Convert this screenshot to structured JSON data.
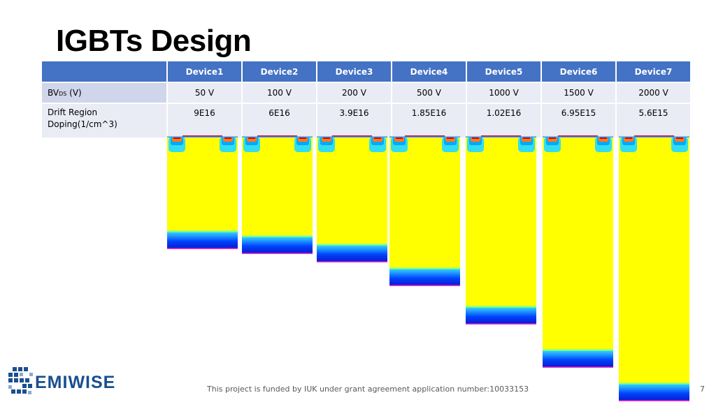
{
  "title": "IGBTs Design",
  "table": {
    "devices": [
      "Device1",
      "Device2",
      "Device3",
      "Device4",
      "Device5",
      "Device6",
      "Device7"
    ],
    "bvds_label_prefix": "BV",
    "bvds_label_sub": "DS",
    "bvds_label_suffix": " (V)",
    "bvds": [
      "50 V",
      "100 V",
      "200 V",
      "500 V",
      "1000 V",
      "1500 V",
      "2000 V"
    ],
    "doping_label_line1": "Drift Region",
    "doping_label_line2": "Doping(1/cm^3)",
    "doping": [
      "9E16",
      "6E16",
      "3.9E16",
      "1.85E16",
      "1.02E16",
      "6.95E15",
      "5.6E15"
    ]
  },
  "footer": "This project is funded by IUK under grant agreement application number:10033153",
  "page_number": "7",
  "logo": {
    "text": "EMIWISE",
    "icon": "semiwise-s-logo-icon"
  },
  "colors": {
    "header_blue": "#4472c4",
    "drift_yellow": "#ffff00",
    "logo_blue": "#1a4f8f"
  }
}
